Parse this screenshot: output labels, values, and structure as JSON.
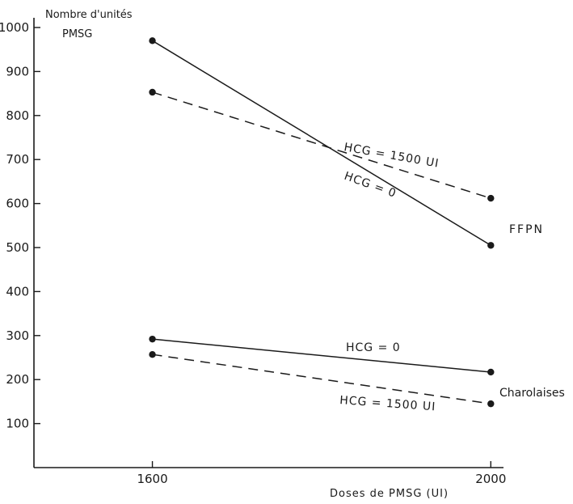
{
  "chart_data": {
    "type": "line",
    "ylabel_line1": "Nombre d'unités",
    "ylabel_line2": "PMSG",
    "xlabel": "Doses de PMSG (UI)",
    "x_ticks": [
      "1600",
      "2000"
    ],
    "y_ticks": [
      "100",
      "200",
      "300",
      "400",
      "500",
      "600",
      "700",
      "800",
      "900",
      "1000"
    ],
    "ylim": [
      0,
      1000
    ],
    "xlim": [
      1460,
      2015
    ],
    "x": [
      1600,
      2000
    ],
    "groups": [
      {
        "name": "FFPN",
        "series": [
          {
            "name": "HCG = 0",
            "style": "solid",
            "values": [
              970,
              505
            ]
          },
          {
            "name": "HCG = 1500 UI",
            "style": "dashed",
            "values": [
              853,
              612
            ]
          }
        ]
      },
      {
        "name": "Charolaises",
        "series": [
          {
            "name": "HCG = 0",
            "style": "solid",
            "values": [
              292,
              217
            ]
          },
          {
            "name": "HCG = 1500 UI",
            "style": "dashed",
            "values": [
              257,
              145
            ]
          }
        ]
      }
    ]
  }
}
